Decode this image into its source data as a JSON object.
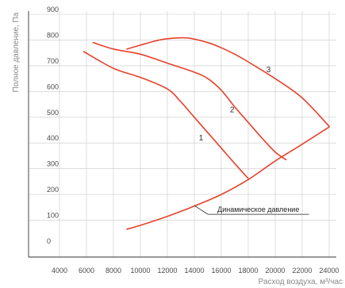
{
  "chart_data": {
    "type": "line",
    "xlabel": "Расход воздуха, м³/час",
    "ylabel": "Полное давление, Па",
    "xlim": [
      4000,
      24000
    ],
    "ylim": [
      0,
      900
    ],
    "x_ticks": [
      4000,
      6000,
      8000,
      10000,
      12000,
      14000,
      16000,
      18000,
      20000,
      22000,
      24000
    ],
    "y_ticks": [
      0,
      100,
      200,
      300,
      400,
      500,
      600,
      700,
      800,
      900
    ],
    "grid": true,
    "line_color": "#e8412c",
    "series": [
      {
        "name": "1",
        "label_at": [
          14500,
          410
        ],
        "points": [
          [
            5800,
            755
          ],
          [
            8000,
            690
          ],
          [
            10000,
            655
          ],
          [
            12000,
            610
          ],
          [
            13000,
            560
          ],
          [
            14000,
            500
          ],
          [
            15000,
            440
          ],
          [
            16000,
            380
          ],
          [
            17000,
            320
          ],
          [
            18000,
            262
          ]
        ]
      },
      {
        "name": "2",
        "label_at": [
          16800,
          520
        ],
        "points": [
          [
            6500,
            790
          ],
          [
            8000,
            765
          ],
          [
            10000,
            745
          ],
          [
            12000,
            710
          ],
          [
            14000,
            675
          ],
          [
            15000,
            650
          ],
          [
            16000,
            605
          ],
          [
            17000,
            540
          ],
          [
            18000,
            480
          ],
          [
            19000,
            420
          ],
          [
            20000,
            365
          ],
          [
            20800,
            335
          ]
        ]
      },
      {
        "name": "3",
        "label_at": [
          19500,
          675
        ],
        "points": [
          [
            9000,
            765
          ],
          [
            10000,
            780
          ],
          [
            11000,
            795
          ],
          [
            12000,
            805
          ],
          [
            13500,
            808
          ],
          [
            15000,
            790
          ],
          [
            16000,
            770
          ],
          [
            17000,
            745
          ],
          [
            18000,
            715
          ],
          [
            20000,
            650
          ],
          [
            22000,
            575
          ],
          [
            24000,
            465
          ]
        ]
      },
      {
        "name": "Динамическое давление",
        "points": [
          [
            9000,
            65
          ],
          [
            10000,
            80
          ],
          [
            12000,
            115
          ],
          [
            14000,
            155
          ],
          [
            16000,
            200
          ],
          [
            18000,
            258
          ],
          [
            20000,
            330
          ],
          [
            22000,
            395
          ],
          [
            24000,
            462
          ]
        ]
      }
    ],
    "annotation": {
      "text": "Динамическое давление",
      "target": [
        14000,
        157
      ],
      "line_start": [
        15000,
        123
      ],
      "line_end": [
        22500,
        123
      ]
    }
  }
}
